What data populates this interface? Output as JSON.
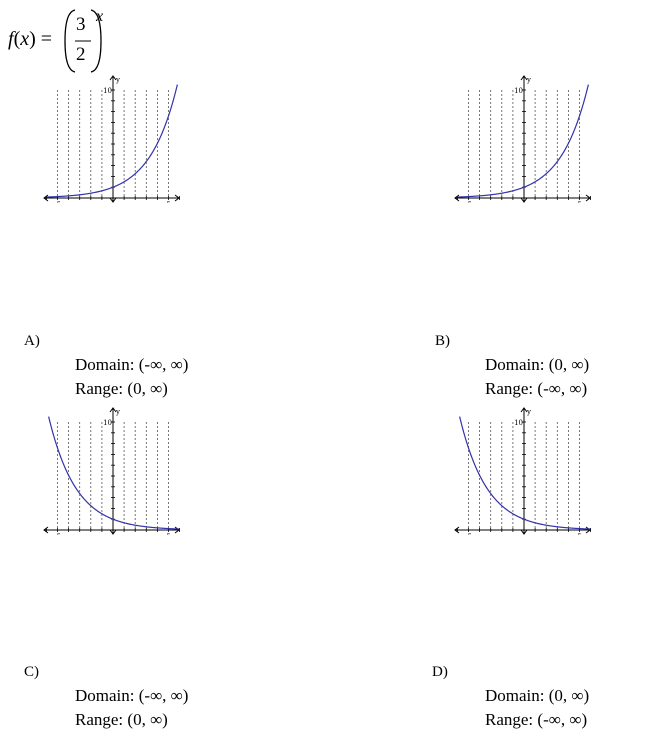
{
  "formula": {
    "f": "f",
    "x": "x",
    "numerator": "3",
    "denominator": "2",
    "exponent": "x"
  },
  "graph_labels": {
    "y_axis": "y",
    "x_axis": "x",
    "y_tick": "10",
    "x_neg_tick": "-5",
    "x_pos_tick": "5"
  },
  "options": [
    {
      "letter": "A)",
      "domain": "Domain: (-∞, ∞)",
      "range": "Range: (0, ∞)"
    },
    {
      "letter": "B)",
      "domain": "Domain: (0, ∞)",
      "range": "Range: (-∞, ∞)"
    },
    {
      "letter": "C)",
      "domain": "Domain: (-∞, ∞)",
      "range": "Range: (0, ∞)"
    },
    {
      "letter": "D)",
      "domain": "Domain: (0, ∞)",
      "range": "Range: (-∞, ∞)"
    }
  ],
  "chart_data": [
    {
      "type": "line",
      "function": "(3/2)^x",
      "xlim": [
        -6,
        6
      ],
      "ylim": [
        0,
        10
      ],
      "x_ticks_labeled": [
        -5,
        5
      ],
      "y_ticks_labeled": [
        10
      ],
      "grid": "vertical dashed lines at integer x"
    },
    {
      "type": "line",
      "function": "(3/2)^x",
      "xlim": [
        -6,
        6
      ],
      "ylim": [
        0,
        10
      ],
      "x_ticks_labeled": [
        -5,
        5
      ],
      "y_ticks_labeled": [
        10
      ],
      "grid": "vertical dashed lines at integer x"
    },
    {
      "type": "line",
      "function": "(2/3)^x",
      "xlim": [
        -6,
        6
      ],
      "ylim": [
        0,
        10
      ],
      "x_ticks_labeled": [
        -5,
        5
      ],
      "y_ticks_labeled": [
        10
      ],
      "grid": "vertical dashed lines at integer x"
    },
    {
      "type": "line",
      "function": "(2/3)^x",
      "xlim": [
        -6,
        6
      ],
      "ylim": [
        0,
        10
      ],
      "x_ticks_labeled": [
        -5,
        5
      ],
      "y_ticks_labeled": [
        10
      ],
      "grid": "vertical dashed lines at integer x"
    }
  ]
}
